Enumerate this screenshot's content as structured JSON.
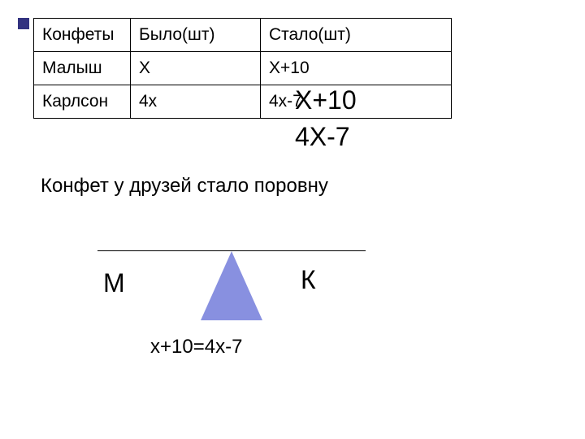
{
  "table": {
    "columns": [
      "Конфеты",
      "Было(шт)",
      "Стало(шт)"
    ],
    "rows": [
      [
        "Малыш",
        "Х",
        "Х+10"
      ],
      [
        "Карлсон",
        "4х",
        "4х-7"
      ]
    ],
    "border_color": "#000000",
    "cell_fontsize": 21
  },
  "overlay": {
    "line1": "Х+10",
    "line2": "4Х-7",
    "fontsize": 32,
    "color": "#000000"
  },
  "caption": {
    "text": "Конфет у друзей стало поровну",
    "fontsize": 24,
    "color": "#000000"
  },
  "balance": {
    "left_label": "М",
    "right_label": "К",
    "label_fontsize": 32,
    "equation": "х+10=4х-7",
    "equation_fontsize": 24,
    "fulcrum_color": "#8890e0",
    "beam_color": "#000000"
  },
  "bullet": {
    "color": "#333380",
    "size": 14
  }
}
